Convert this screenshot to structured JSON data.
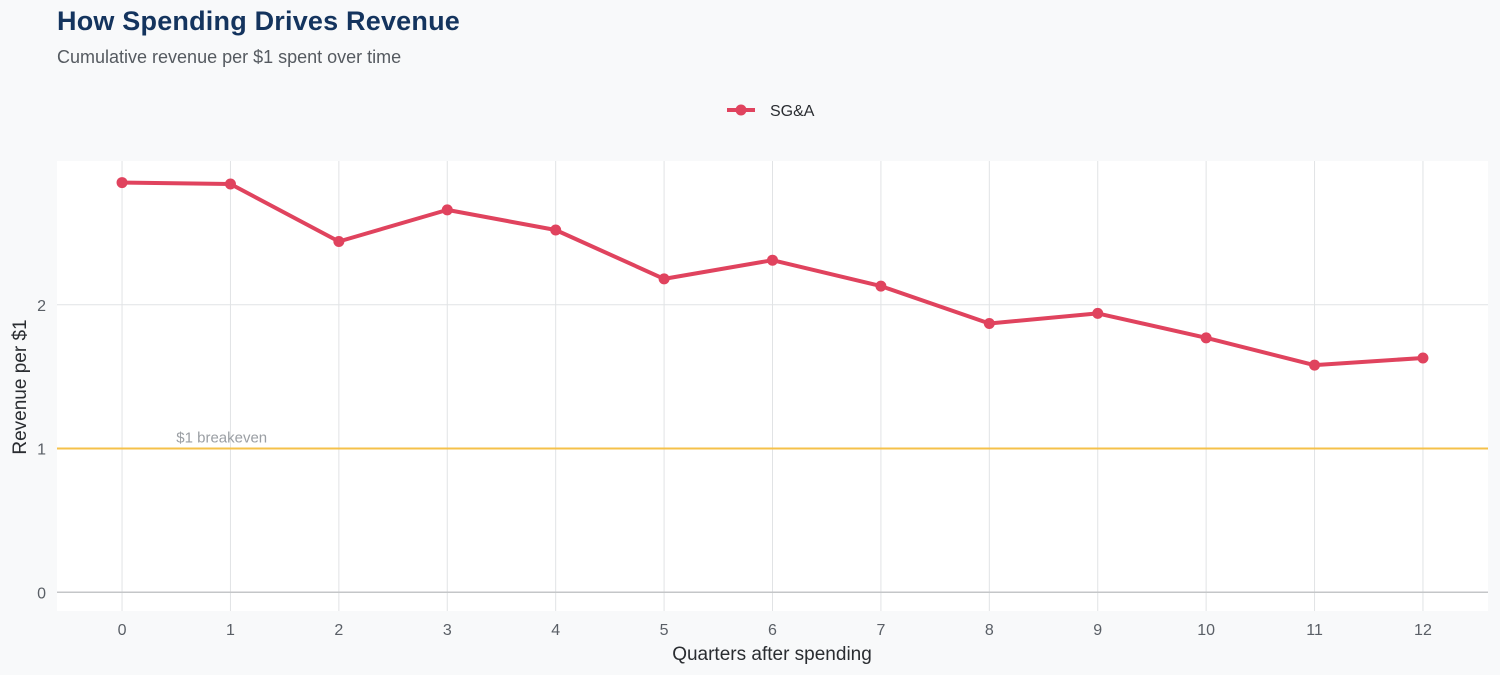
{
  "chart_data": {
    "type": "line",
    "title": "How Spending Drives Revenue",
    "subtitle": "Cumulative revenue per $1 spent over time",
    "xlabel": "Quarters after spending",
    "ylabel": "Revenue per $1",
    "x": [
      0,
      1,
      2,
      3,
      4,
      5,
      6,
      7,
      8,
      9,
      10,
      11,
      12
    ],
    "x_tick_labels": [
      "0",
      "1",
      "2",
      "3",
      "4",
      "5",
      "6",
      "7",
      "8",
      "9",
      "10",
      "11",
      "12"
    ],
    "y_ticks": [
      0,
      1,
      2
    ],
    "y_tick_labels": [
      "0",
      "1",
      "2"
    ],
    "xlim": [
      -0.6,
      12.6
    ],
    "ylim": [
      -0.13,
      3.0
    ],
    "grid": true,
    "legend_position": "top",
    "series": [
      {
        "name": "SG&A",
        "color": "#e0435e",
        "values": [
          2.85,
          2.84,
          2.44,
          2.66,
          2.52,
          2.18,
          2.31,
          2.13,
          1.87,
          1.94,
          1.77,
          1.58,
          1.63
        ]
      }
    ],
    "reference_line": {
      "y": 1,
      "label": "$1 breakeven",
      "color": "#f5c14a"
    }
  }
}
